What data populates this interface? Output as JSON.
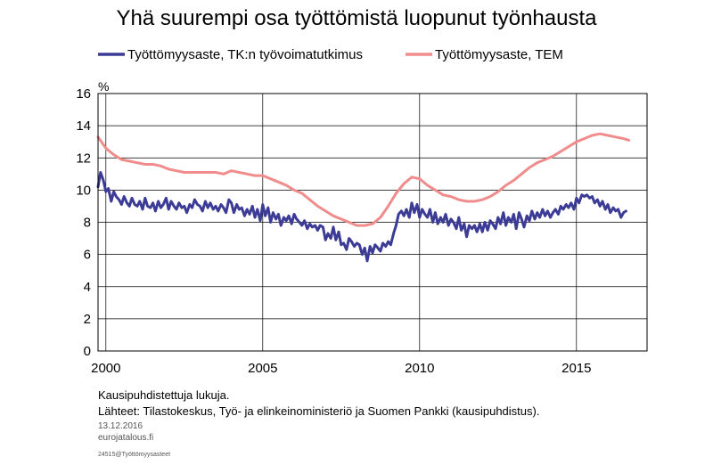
{
  "chart_data": {
    "type": "line",
    "title": "Yhä suurempi osa työttömistä luopunut työnhausta",
    "ylabel": "%",
    "xlabel": "",
    "xlim": [
      1999.75,
      2017.25
    ],
    "ylim": [
      0,
      16
    ],
    "x_ticks": [
      {
        "value": 2000,
        "label": "2000"
      },
      {
        "value": 2005,
        "label": "2005"
      },
      {
        "value": 2010,
        "label": "2010"
      },
      {
        "value": 2015,
        "label": "2015"
      }
    ],
    "y_ticks": [
      {
        "value": 0,
        "label": "0"
      },
      {
        "value": 2,
        "label": "2"
      },
      {
        "value": 4,
        "label": "4"
      },
      {
        "value": 6,
        "label": "6"
      },
      {
        "value": 8,
        "label": "8"
      },
      {
        "value": 10,
        "label": "10"
      },
      {
        "value": 12,
        "label": "12"
      },
      {
        "value": 14,
        "label": "14"
      },
      {
        "value": 16,
        "label": "16"
      }
    ],
    "grid": {
      "vertical": true,
      "horizontal": true
    },
    "legend_position": "top",
    "series": [
      {
        "name": "Työttömyysaste, TK:n työvoimatutkimus",
        "color": "#3c3c96",
        "points": [
          [
            1999.75,
            10.2
          ],
          [
            1999.83,
            11.1
          ],
          [
            1999.92,
            10.6
          ],
          [
            2000.0,
            9.9
          ],
          [
            2000.08,
            10.1
          ],
          [
            2000.17,
            9.3
          ],
          [
            2000.25,
            9.9
          ],
          [
            2000.33,
            9.6
          ],
          [
            2000.42,
            9.4
          ],
          [
            2000.5,
            9.1
          ],
          [
            2000.58,
            9.6
          ],
          [
            2000.67,
            9.2
          ],
          [
            2000.75,
            9.0
          ],
          [
            2000.83,
            9.5
          ],
          [
            2000.92,
            9.1
          ],
          [
            2001.0,
            9.0
          ],
          [
            2001.08,
            9.3
          ],
          [
            2001.17,
            8.8
          ],
          [
            2001.25,
            9.5
          ],
          [
            2001.33,
            9.0
          ],
          [
            2001.42,
            8.9
          ],
          [
            2001.5,
            9.2
          ],
          [
            2001.58,
            8.7
          ],
          [
            2001.67,
            9.3
          ],
          [
            2001.75,
            8.9
          ],
          [
            2001.83,
            9.1
          ],
          [
            2001.92,
            9.5
          ],
          [
            2002.0,
            8.8
          ],
          [
            2002.08,
            9.3
          ],
          [
            2002.17,
            9.0
          ],
          [
            2002.25,
            8.8
          ],
          [
            2002.33,
            9.2
          ],
          [
            2002.42,
            8.9
          ],
          [
            2002.5,
            9.0
          ],
          [
            2002.58,
            8.6
          ],
          [
            2002.67,
            9.1
          ],
          [
            2002.75,
            8.9
          ],
          [
            2002.83,
            9.4
          ],
          [
            2002.92,
            9.1
          ],
          [
            2003.0,
            9.0
          ],
          [
            2003.08,
            8.7
          ],
          [
            2003.17,
            9.3
          ],
          [
            2003.25,
            8.9
          ],
          [
            2003.33,
            9.2
          ],
          [
            2003.42,
            8.8
          ],
          [
            2003.5,
            9.0
          ],
          [
            2003.58,
            8.7
          ],
          [
            2003.67,
            9.1
          ],
          [
            2003.75,
            8.9
          ],
          [
            2003.83,
            8.6
          ],
          [
            2003.92,
            9.4
          ],
          [
            2004.0,
            9.2
          ],
          [
            2004.08,
            8.6
          ],
          [
            2004.17,
            9.1
          ],
          [
            2004.25,
            8.8
          ],
          [
            2004.33,
            8.9
          ],
          [
            2004.42,
            8.4
          ],
          [
            2004.5,
            8.8
          ],
          [
            2004.58,
            8.5
          ],
          [
            2004.67,
            9.0
          ],
          [
            2004.75,
            8.3
          ],
          [
            2004.83,
            8.8
          ],
          [
            2004.92,
            8.1
          ],
          [
            2005.0,
            9.1
          ],
          [
            2005.08,
            8.4
          ],
          [
            2005.17,
            8.9
          ],
          [
            2005.25,
            8.0
          ],
          [
            2005.33,
            8.6
          ],
          [
            2005.42,
            8.2
          ],
          [
            2005.5,
            8.5
          ],
          [
            2005.58,
            7.8
          ],
          [
            2005.67,
            8.3
          ],
          [
            2005.75,
            8.1
          ],
          [
            2005.83,
            8.4
          ],
          [
            2005.92,
            7.9
          ],
          [
            2006.0,
            8.5
          ],
          [
            2006.08,
            8.2
          ],
          [
            2006.17,
            8.0
          ],
          [
            2006.25,
            7.8
          ],
          [
            2006.33,
            8.1
          ],
          [
            2006.42,
            7.6
          ],
          [
            2006.5,
            7.9
          ],
          [
            2006.58,
            7.7
          ],
          [
            2006.67,
            7.8
          ],
          [
            2006.75,
            7.5
          ],
          [
            2006.83,
            7.8
          ],
          [
            2006.92,
            7.7
          ],
          [
            2007.0,
            6.9
          ],
          [
            2007.08,
            7.3
          ],
          [
            2007.17,
            7.0
          ],
          [
            2007.25,
            7.7
          ],
          [
            2007.33,
            6.9
          ],
          [
            2007.42,
            7.4
          ],
          [
            2007.5,
            6.6
          ],
          [
            2007.58,
            6.7
          ],
          [
            2007.67,
            6.3
          ],
          [
            2007.75,
            7.0
          ],
          [
            2007.83,
            6.8
          ],
          [
            2007.92,
            6.5
          ],
          [
            2008.0,
            6.7
          ],
          [
            2008.08,
            6.6
          ],
          [
            2008.17,
            6.0
          ],
          [
            2008.25,
            6.4
          ],
          [
            2008.33,
            5.6
          ],
          [
            2008.42,
            6.5
          ],
          [
            2008.5,
            6.1
          ],
          [
            2008.58,
            6.6
          ],
          [
            2008.67,
            6.4
          ],
          [
            2008.75,
            6.2
          ],
          [
            2008.83,
            6.7
          ],
          [
            2008.92,
            6.5
          ],
          [
            2009.0,
            6.8
          ],
          [
            2009.08,
            6.6
          ],
          [
            2009.17,
            7.3
          ],
          [
            2009.25,
            7.8
          ],
          [
            2009.33,
            8.5
          ],
          [
            2009.42,
            8.7
          ],
          [
            2009.5,
            8.4
          ],
          [
            2009.58,
            8.8
          ],
          [
            2009.67,
            8.3
          ],
          [
            2009.75,
            9.2
          ],
          [
            2009.83,
            8.6
          ],
          [
            2009.92,
            9.1
          ],
          [
            2010.0,
            8.3
          ],
          [
            2010.08,
            8.8
          ],
          [
            2010.17,
            8.5
          ],
          [
            2010.25,
            8.3
          ],
          [
            2010.33,
            8.8
          ],
          [
            2010.42,
            8.0
          ],
          [
            2010.5,
            8.6
          ],
          [
            2010.58,
            7.9
          ],
          [
            2010.67,
            8.3
          ],
          [
            2010.75,
            8.0
          ],
          [
            2010.83,
            8.5
          ],
          [
            2010.92,
            7.8
          ],
          [
            2011.0,
            8.2
          ],
          [
            2011.08,
            8.0
          ],
          [
            2011.17,
            7.6
          ],
          [
            2011.25,
            8.3
          ],
          [
            2011.33,
            7.5
          ],
          [
            2011.42,
            7.9
          ],
          [
            2011.5,
            7.1
          ],
          [
            2011.58,
            7.8
          ],
          [
            2011.67,
            7.6
          ],
          [
            2011.75,
            7.8
          ],
          [
            2011.83,
            7.4
          ],
          [
            2011.92,
            7.9
          ],
          [
            2012.0,
            7.4
          ],
          [
            2012.08,
            8.0
          ],
          [
            2012.17,
            7.5
          ],
          [
            2012.25,
            8.1
          ],
          [
            2012.33,
            7.9
          ],
          [
            2012.42,
            7.6
          ],
          [
            2012.5,
            8.3
          ],
          [
            2012.58,
            7.9
          ],
          [
            2012.67,
            8.6
          ],
          [
            2012.75,
            7.8
          ],
          [
            2012.83,
            8.3
          ],
          [
            2012.92,
            8.0
          ],
          [
            2013.0,
            8.5
          ],
          [
            2013.08,
            7.6
          ],
          [
            2013.17,
            8.6
          ],
          [
            2013.25,
            8.2
          ],
          [
            2013.33,
            7.7
          ],
          [
            2013.42,
            8.4
          ],
          [
            2013.5,
            8.1
          ],
          [
            2013.58,
            8.7
          ],
          [
            2013.67,
            8.2
          ],
          [
            2013.75,
            8.6
          ],
          [
            2013.83,
            8.3
          ],
          [
            2013.92,
            8.8
          ],
          [
            2014.0,
            8.4
          ],
          [
            2014.08,
            8.7
          ],
          [
            2014.17,
            8.3
          ],
          [
            2014.25,
            8.6
          ],
          [
            2014.33,
            8.8
          ],
          [
            2014.42,
            8.5
          ],
          [
            2014.5,
            9.0
          ],
          [
            2014.58,
            8.8
          ],
          [
            2014.67,
            9.1
          ],
          [
            2014.75,
            8.9
          ],
          [
            2014.83,
            9.2
          ],
          [
            2014.92,
            8.8
          ],
          [
            2015.0,
            9.5
          ],
          [
            2015.08,
            9.2
          ],
          [
            2015.17,
            9.7
          ],
          [
            2015.25,
            9.6
          ],
          [
            2015.33,
            9.7
          ],
          [
            2015.42,
            9.5
          ],
          [
            2015.5,
            9.6
          ],
          [
            2015.58,
            9.2
          ],
          [
            2015.67,
            9.4
          ],
          [
            2015.75,
            9.0
          ],
          [
            2015.83,
            9.3
          ],
          [
            2015.92,
            8.8
          ],
          [
            2016.0,
            9.1
          ],
          [
            2016.08,
            8.6
          ],
          [
            2016.17,
            8.9
          ],
          [
            2016.25,
            8.7
          ],
          [
            2016.33,
            8.8
          ],
          [
            2016.42,
            8.3
          ],
          [
            2016.5,
            8.6
          ],
          [
            2016.58,
            8.7
          ]
        ]
      },
      {
        "name": "Työttömyysaste, TEM",
        "color": "#f08c8c",
        "points": [
          [
            1999.75,
            13.3
          ],
          [
            2000.0,
            12.6
          ],
          [
            2000.25,
            12.2
          ],
          [
            2000.5,
            11.9
          ],
          [
            2000.75,
            11.8
          ],
          [
            2001.0,
            11.7
          ],
          [
            2001.25,
            11.6
          ],
          [
            2001.5,
            11.6
          ],
          [
            2001.75,
            11.5
          ],
          [
            2002.0,
            11.3
          ],
          [
            2002.25,
            11.2
          ],
          [
            2002.5,
            11.1
          ],
          [
            2002.75,
            11.1
          ],
          [
            2003.0,
            11.1
          ],
          [
            2003.25,
            11.1
          ],
          [
            2003.5,
            11.1
          ],
          [
            2003.75,
            11.0
          ],
          [
            2004.0,
            11.2
          ],
          [
            2004.25,
            11.1
          ],
          [
            2004.5,
            11.0
          ],
          [
            2004.75,
            10.9
          ],
          [
            2005.0,
            10.9
          ],
          [
            2005.25,
            10.7
          ],
          [
            2005.5,
            10.5
          ],
          [
            2005.75,
            10.3
          ],
          [
            2006.0,
            10.0
          ],
          [
            2006.25,
            9.8
          ],
          [
            2006.5,
            9.4
          ],
          [
            2006.75,
            9.0
          ],
          [
            2007.0,
            8.7
          ],
          [
            2007.25,
            8.4
          ],
          [
            2007.5,
            8.2
          ],
          [
            2007.75,
            8.0
          ],
          [
            2008.0,
            7.8
          ],
          [
            2008.25,
            7.8
          ],
          [
            2008.5,
            7.9
          ],
          [
            2008.75,
            8.3
          ],
          [
            2009.0,
            9.0
          ],
          [
            2009.25,
            9.8
          ],
          [
            2009.5,
            10.4
          ],
          [
            2009.75,
            10.8
          ],
          [
            2010.0,
            10.7
          ],
          [
            2010.25,
            10.3
          ],
          [
            2010.5,
            10.0
          ],
          [
            2010.75,
            9.7
          ],
          [
            2011.0,
            9.6
          ],
          [
            2011.25,
            9.4
          ],
          [
            2011.5,
            9.3
          ],
          [
            2011.75,
            9.3
          ],
          [
            2012.0,
            9.4
          ],
          [
            2012.25,
            9.6
          ],
          [
            2012.5,
            9.9
          ],
          [
            2012.75,
            10.3
          ],
          [
            2013.0,
            10.6
          ],
          [
            2013.25,
            11.0
          ],
          [
            2013.5,
            11.4
          ],
          [
            2013.75,
            11.7
          ],
          [
            2014.0,
            11.9
          ],
          [
            2014.25,
            12.1
          ],
          [
            2014.5,
            12.4
          ],
          [
            2014.75,
            12.7
          ],
          [
            2015.0,
            13.0
          ],
          [
            2015.25,
            13.2
          ],
          [
            2015.5,
            13.4
          ],
          [
            2015.75,
            13.5
          ],
          [
            2016.0,
            13.4
          ],
          [
            2016.25,
            13.3
          ],
          [
            2016.5,
            13.2
          ],
          [
            2016.67,
            13.1
          ]
        ]
      }
    ],
    "notes": [
      "Kausipuhdistettuja lukuja.",
      "Lähteet: Tilastokeskus, Työ- ja elinkeinoministeriö ja Suomen Pankki (kausipuhdistus)."
    ],
    "date": "13.12.2016",
    "source_site": "eurojatalous.fi",
    "file_id": "24515@Työttömyysasteet"
  }
}
